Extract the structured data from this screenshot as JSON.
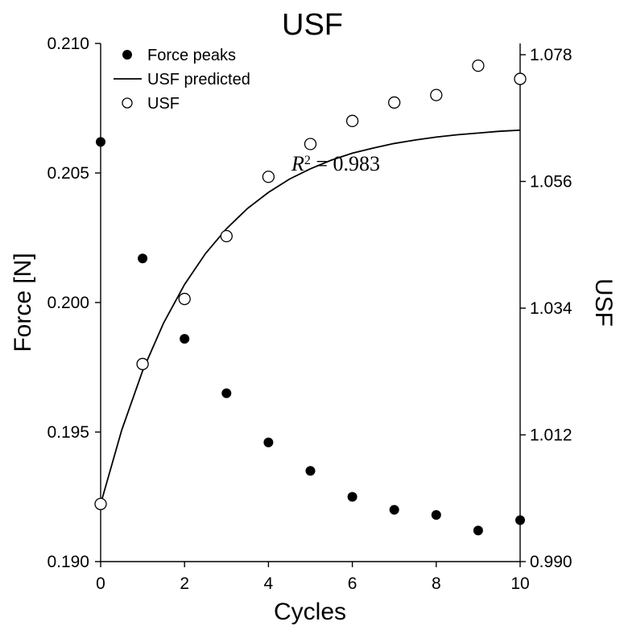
{
  "chart_data": {
    "type": "scatter",
    "title": "USF",
    "xlabel": "Cycles",
    "ylabel_left": "Force [N]",
    "ylabel_right": "USF",
    "xlim": [
      0,
      10
    ],
    "ylim_left": [
      0.19,
      0.21
    ],
    "ylim_right": [
      0.99,
      1.078
    ],
    "x_ticks": [
      "0",
      "2",
      "4",
      "6",
      "8",
      "10"
    ],
    "y_left_ticks": [
      "0.190",
      "0.195",
      "0.200",
      "0.205",
      "0.210"
    ],
    "y_right_ticks": [
      "0.990",
      "1.012",
      "1.034",
      "1.056",
      "1.078"
    ],
    "grid": false,
    "legend_position": "top-left",
    "annotation": {
      "text_prefix": "R",
      "superscript": "2",
      "text_rest": " = 0.983"
    },
    "series": [
      {
        "name": "Force peaks",
        "axis": "left",
        "marker": "filled-circle",
        "x": [
          0,
          1,
          2,
          3,
          4,
          5,
          6,
          7,
          8,
          9,
          10
        ],
        "y": [
          0.2062,
          0.2017,
          0.1986,
          0.1965,
          0.1946,
          0.1935,
          0.1925,
          0.192,
          0.1918,
          0.1912,
          0.1916
        ]
      },
      {
        "name": "USF predicted",
        "axis": "right",
        "marker": "line",
        "x": [
          0,
          0.5,
          1,
          1.5,
          2,
          2.5,
          3,
          3.5,
          4,
          4.5,
          5,
          5.5,
          6,
          6.5,
          7,
          7.5,
          8,
          8.5,
          9,
          9.5,
          10
        ],
        "y": [
          1.0,
          1.0128,
          1.0231,
          1.0314,
          1.0381,
          1.0435,
          1.0478,
          1.0513,
          1.0541,
          1.0564,
          1.0582,
          1.0597,
          1.0609,
          1.0618,
          1.0626,
          1.0632,
          1.0637,
          1.0641,
          1.0644,
          1.0647,
          1.0649
        ]
      },
      {
        "name": "USF",
        "axis": "right",
        "marker": "open-circle",
        "x": [
          0,
          1,
          2,
          3,
          4,
          5,
          6,
          7,
          8,
          9,
          10
        ],
        "y": [
          1.0,
          1.0243,
          1.0356,
          1.0465,
          1.0568,
          1.0625,
          1.0665,
          1.0697,
          1.071,
          1.0761,
          1.0738
        ]
      }
    ]
  }
}
